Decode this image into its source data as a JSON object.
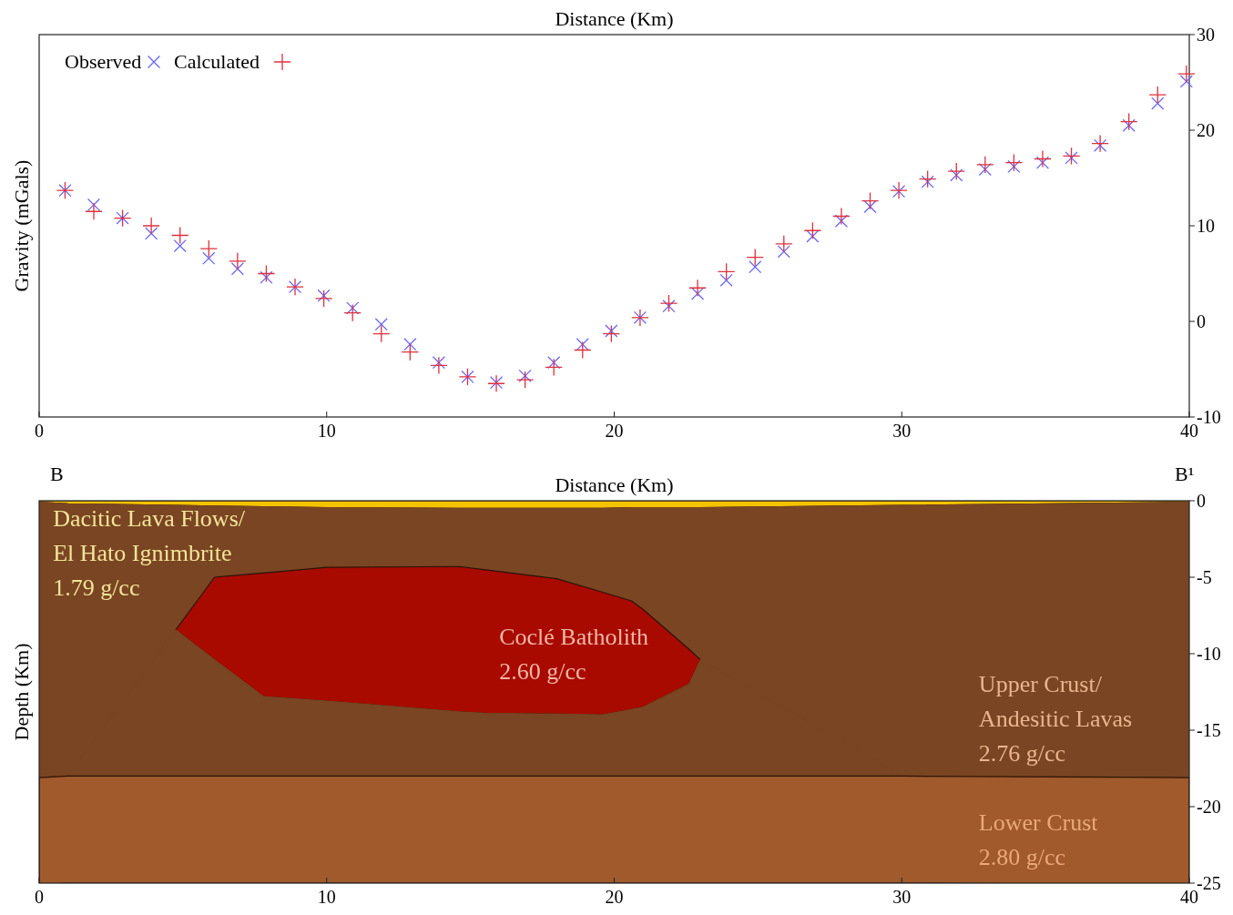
{
  "chart_data": [
    {
      "type": "scatter",
      "xlabel": "Distance (Km)",
      "ylabel": "Gravity (mGals)",
      "xlim": [
        0,
        40
      ],
      "xticks": [
        0,
        10,
        20,
        30,
        40
      ],
      "ylim": [
        -10,
        30
      ],
      "yticks": [
        -10,
        0,
        10,
        20,
        30
      ],
      "legend": "top left",
      "x": [
        0.9,
        1.9,
        2.9,
        3.9,
        4.9,
        5.9,
        6.9,
        7.9,
        8.9,
        9.9,
        10.9,
        11.9,
        12.9,
        13.9,
        14.9,
        15.9,
        16.9,
        17.9,
        18.9,
        19.9,
        20.9,
        21.9,
        22.9,
        23.9,
        24.9,
        25.9,
        26.9,
        27.9,
        28.9,
        29.9,
        30.9,
        31.9,
        32.9,
        33.9,
        34.9,
        35.9,
        36.9,
        37.9,
        38.9,
        39.9
      ],
      "series": [
        {
          "name": "Observed",
          "color": "#6666ff",
          "marker": "cross",
          "values": [
            13.7,
            12.2,
            10.8,
            9.2,
            7.9,
            6.6,
            5.5,
            4.6,
            3.6,
            2.7,
            1.4,
            -0.3,
            -2.4,
            -4.3,
            -5.8,
            -6.4,
            -5.7,
            -4.3,
            -2.4,
            -1.0,
            0.4,
            1.6,
            2.9,
            4.3,
            5.7,
            7.3,
            8.9,
            10.5,
            12.0,
            13.6,
            14.6,
            15.3,
            15.9,
            16.2,
            16.6,
            17.1,
            18.4,
            20.5,
            22.8,
            25.1
          ]
        },
        {
          "name": "Calculated",
          "color": "#e0303c",
          "marker": "plus",
          "values": [
            13.7,
            11.5,
            10.8,
            10.0,
            9.0,
            7.6,
            6.3,
            5.0,
            3.6,
            2.4,
            0.9,
            -1.3,
            -3.2,
            -4.6,
            -5.8,
            -6.5,
            -6.1,
            -4.8,
            -3.0,
            -1.3,
            0.4,
            1.9,
            3.5,
            5.2,
            6.7,
            8.1,
            9.5,
            11.0,
            12.6,
            13.7,
            14.9,
            15.7,
            16.4,
            16.6,
            17.0,
            17.3,
            18.6,
            20.9,
            23.7,
            25.9
          ]
        }
      ]
    },
    {
      "type": "area",
      "stacked": true,
      "xlabel": "Distance (Km)",
      "ylabel": "Depth (Km)",
      "xlim": [
        0,
        40
      ],
      "xticks": [
        0,
        10,
        20,
        30,
        40
      ],
      "ylim": [
        -25,
        0
      ],
      "yticks": [
        -25,
        -20,
        -15,
        -10,
        -5,
        0
      ],
      "x": [
        0,
        1,
        4.75,
        6.1,
        7.8,
        10,
        14.6,
        15.6,
        18,
        19.6,
        20.6,
        21,
        22.6,
        23,
        30,
        40
      ],
      "series": [
        {
          "color": "#f5c400",
          "values": [
            -0.1,
            -0.2,
            -0.3,
            -0.35,
            -0.4,
            -0.45,
            -0.5,
            -0.5,
            -0.5,
            -0.5,
            -0.45,
            -0.45,
            -0.45,
            -0.45,
            -0.3,
            -0.1
          ]
        },
        {
          "color": "#7a4522",
          "values": [
            -18,
            -17.8,
            -8.15,
            -4.65,
            -4.32,
            -3.9,
            -3.8,
            -4.03,
            -4.6,
            -5.48,
            -6.1,
            -6.65,
            -9.25,
            -9.95,
            -17.7,
            -18
          ]
        },
        {
          "color": "#a80a00",
          "values": [
            null,
            null,
            0,
            -5.4,
            -8.08,
            -8.75,
            -9.5,
            -9.37,
            -8.85,
            -8.02,
            -7.1,
            -6.4,
            -2.3,
            0,
            null,
            null
          ]
        },
        {
          "color": "#7a4522",
          "values": [
            0,
            0,
            -9.55,
            -7.6,
            -5.2,
            -4.9,
            -4.2,
            -4.1,
            -4.05,
            -4.0,
            -4.35,
            -4.5,
            -6.0,
            -7.6,
            0,
            0
          ]
        },
        {
          "color": "#a05a2c",
          "values": [
            -7,
            -7,
            -7,
            -7,
            -7,
            -7,
            -7,
            -7,
            -7,
            -7,
            -7,
            -7,
            -7,
            -7,
            -7,
            -7
          ]
        }
      ],
      "annotations": [
        "B",
        "B¹",
        "Dacitic Lava Flows/\nEl Hato Ignimbrite\n1.79 g/cc",
        "Coclé Batholith\n2.60 g/cc",
        "Upper Crust/\nAndesitic Lavas\n2.76 g/cc",
        "Lower Crust\n2.80 g/cc"
      ]
    }
  ]
}
